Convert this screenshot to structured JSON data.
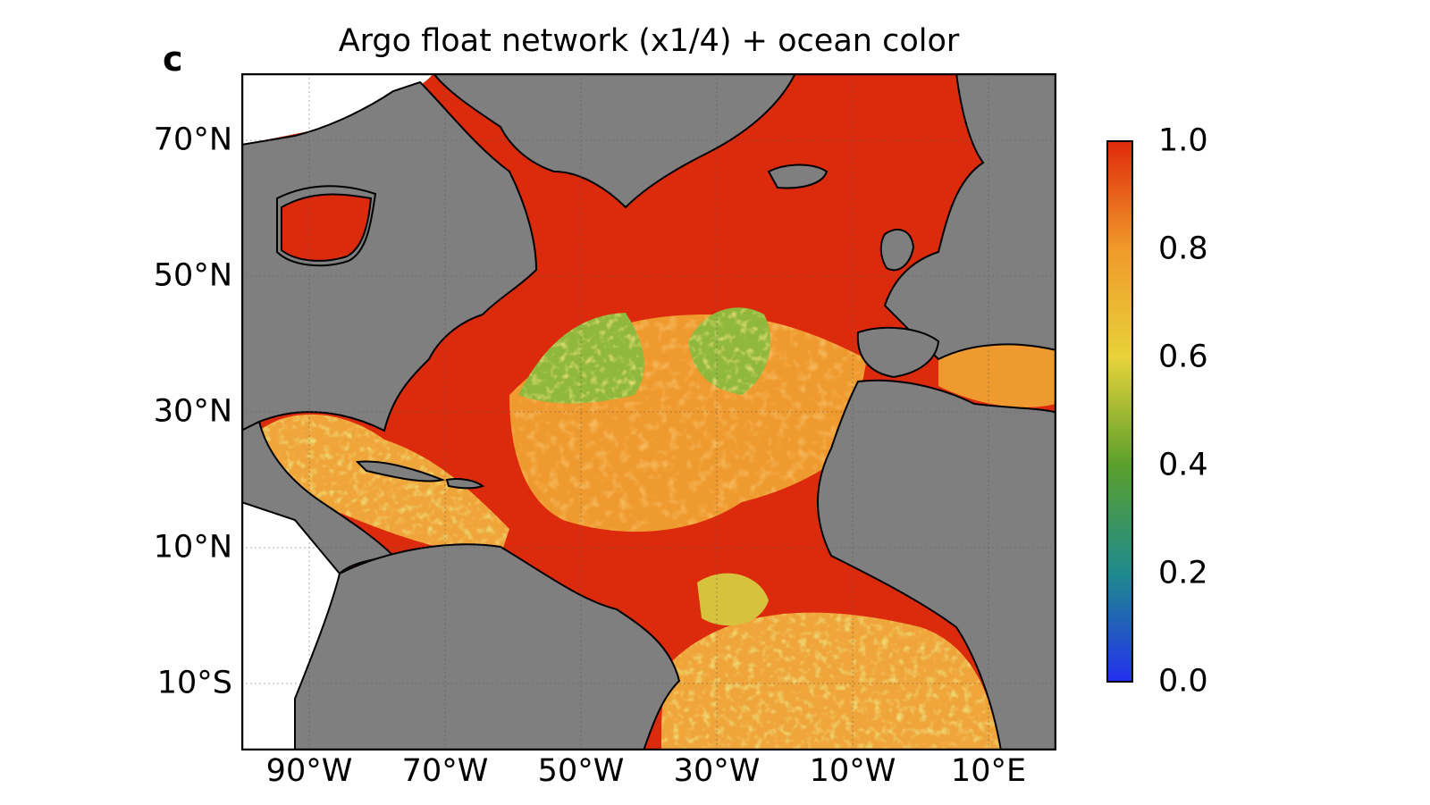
{
  "panel_label": "c",
  "title": "Argo float network (x1/4) + ocean color",
  "lat_labels": [
    "70°N",
    "50°N",
    "30°N",
    "10°N",
    "10°S"
  ],
  "lon_labels": [
    "90°W",
    "70°W",
    "50°W",
    "30°W",
    "10°W",
    "10°E"
  ],
  "colorbar": {
    "ticks": [
      "1.0",
      "0.8",
      "0.6",
      "0.4",
      "0.2",
      "0.0"
    ],
    "min": 0.0,
    "max": 1.0,
    "colors": [
      "#2430f0",
      "#1f8a8c",
      "#5aa02c",
      "#e8d23a",
      "#f09a2a",
      "#e02a0c"
    ]
  },
  "colors": {
    "land": "#7f7f7f",
    "ocean_high": "#dc2b0c",
    "ocean_mid": "#f0a23c",
    "ocean_low": "#6ea83a",
    "outside": "#ffffff"
  },
  "map_extent": {
    "lon": [
      -100,
      20
    ],
    "lat": [
      -20,
      78
    ]
  }
}
